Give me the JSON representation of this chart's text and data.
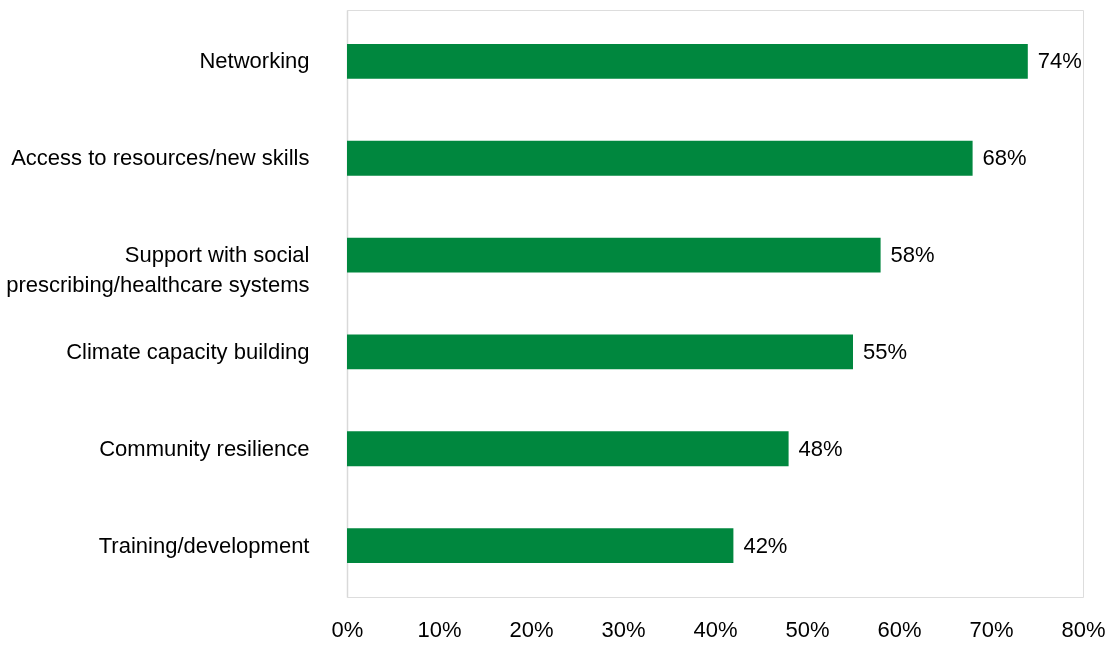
{
  "chart_data": {
    "type": "bar",
    "orientation": "horizontal",
    "categories": [
      "Networking",
      "Access to resources/new skills",
      "Support with social prescribing/healthcare systems",
      "Climate capacity building",
      "Community resilience",
      "Training/development"
    ],
    "values": [
      74,
      68,
      58,
      55,
      48,
      42
    ],
    "value_labels": [
      "74%",
      "68%",
      "58%",
      "55%",
      "48%",
      "42%"
    ],
    "color": "#00873e",
    "xlim": [
      0,
      80
    ],
    "xticks": [
      {
        "value": 0,
        "label": "0%"
      },
      {
        "value": 10,
        "label": "10%"
      },
      {
        "value": 20,
        "label": "20%"
      },
      {
        "value": 30,
        "label": "30%"
      },
      {
        "value": 40,
        "label": "40%"
      },
      {
        "value": 50,
        "label": "50%"
      },
      {
        "value": 60,
        "label": "60%"
      },
      {
        "value": 70,
        "label": "70%"
      },
      {
        "value": 80,
        "label": "80%"
      }
    ],
    "grid": false
  }
}
